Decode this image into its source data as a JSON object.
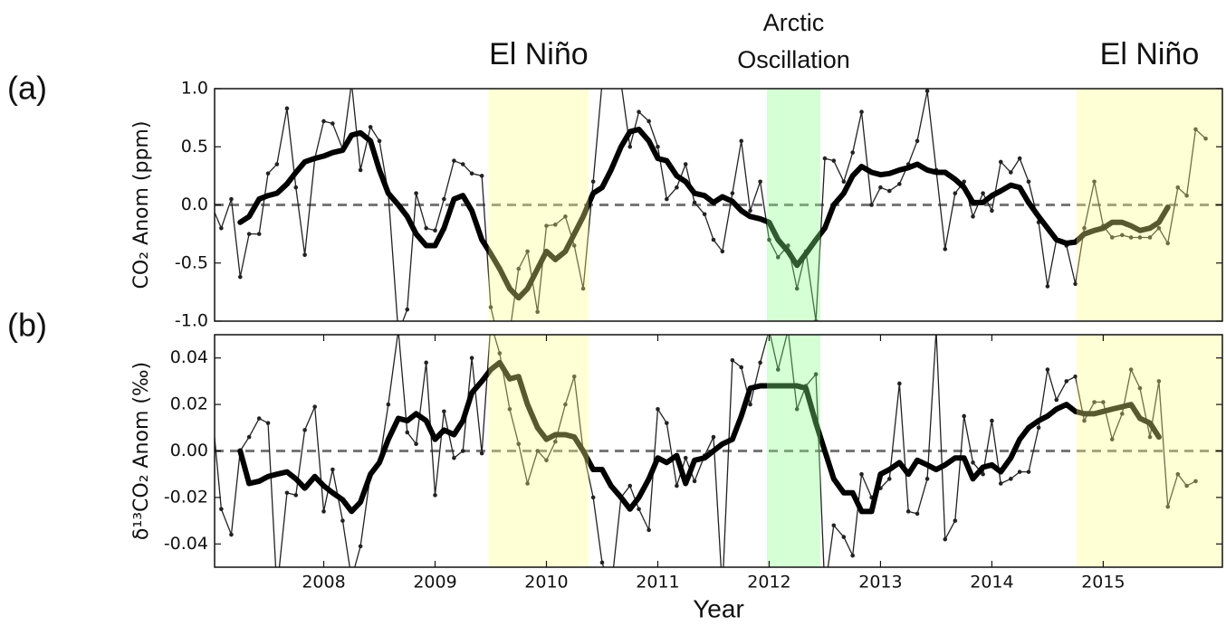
{
  "chart_data": [
    {
      "type": "line",
      "panel_label": "(a)",
      "ylabel": "CO₂ Anom (ppm)",
      "xlim": [
        2007.02,
        2016.07
      ],
      "ylim": [
        -1.0,
        1.0
      ],
      "yticks": [
        {
          "value": 1.0,
          "label": "1.0"
        },
        {
          "value": 0.5,
          "label": "0.5"
        },
        {
          "value": 0.0,
          "label": "0.0"
        },
        {
          "value": -0.5,
          "label": "-0.5"
        },
        {
          "value": -1.0,
          "label": "-1.0"
        }
      ],
      "reference_line": 0,
      "spans": [
        {
          "start": 2009.48,
          "end": 2010.38,
          "color": "#ffff88",
          "label": [
            "El Niño"
          ]
        },
        {
          "start": 2011.98,
          "end": 2012.46,
          "color": "#88ff88",
          "label": [
            "Arctic",
            "Oscillation"
          ]
        },
        {
          "start": 2014.76,
          "end": 2016.07,
          "color": "#ffff88",
          "label": [
            "El Niño"
          ]
        }
      ],
      "series": [
        {
          "color": "#222222",
          "width": 1.3,
          "markers": true,
          "x": [
            2007.0,
            2007.08,
            2007.17,
            2007.25,
            2007.33,
            2007.42,
            2007.5,
            2007.58,
            2007.67,
            2007.75,
            2007.83,
            2007.92,
            2008.0,
            2008.08,
            2008.17,
            2008.25,
            2008.33,
            2008.42,
            2008.5,
            2008.58,
            2008.67,
            2008.75,
            2008.83,
            2008.92,
            2009.0,
            2009.08,
            2009.17,
            2009.25,
            2009.33,
            2009.42,
            2009.5,
            2009.58,
            2009.67,
            2009.75,
            2009.83,
            2009.92,
            2010.0,
            2010.08,
            2010.17,
            2010.25,
            2010.33,
            2010.42,
            2010.5,
            2010.58,
            2010.67,
            2010.75,
            2010.83,
            2010.92,
            2011.0,
            2011.08,
            2011.17,
            2011.25,
            2011.33,
            2011.42,
            2011.5,
            2011.58,
            2011.67,
            2011.75,
            2011.83,
            2011.92,
            2012.0,
            2012.08,
            2012.17,
            2012.25,
            2012.33,
            2012.42,
            2012.5,
            2012.58,
            2012.67,
            2012.75,
            2012.83,
            2012.92,
            2013.0,
            2013.08,
            2013.17,
            2013.25,
            2013.33,
            2013.42,
            2013.5,
            2013.58,
            2013.67,
            2013.75,
            2013.83,
            2013.92,
            2014.0,
            2014.08,
            2014.17,
            2014.25,
            2014.33,
            2014.42,
            2014.5,
            2014.58,
            2014.67,
            2014.75,
            2014.83,
            2014.92,
            2015.0,
            2015.08,
            2015.17,
            2015.25,
            2015.33,
            2015.42,
            2015.5,
            2015.58,
            2015.67,
            2015.75,
            2015.83,
            2015.92
          ],
          "values": [
            -0.02,
            -0.2,
            0.05,
            -0.62,
            -0.25,
            -0.25,
            0.27,
            0.35,
            0.83,
            0.15,
            -0.43,
            0.4,
            0.72,
            0.7,
            0.48,
            1.05,
            0.3,
            0.67,
            0.55,
            0.1,
            -1.1,
            -0.9,
            0.1,
            -0.2,
            -0.22,
            0.05,
            0.38,
            0.35,
            0.27,
            0.25,
            -0.88,
            -1.2,
            -1.1,
            -0.55,
            -0.4,
            -0.92,
            -0.18,
            -0.17,
            -0.1,
            -0.35,
            -0.72,
            0.2,
            1.05,
            1.1,
            1.05,
            0.5,
            0.8,
            0.72,
            0.5,
            0.05,
            0.15,
            0.35,
            0.02,
            -0.08,
            -0.3,
            -0.4,
            0.1,
            0.55,
            -0.05,
            0.2,
            -0.3,
            -0.45,
            -0.35,
            -0.72,
            -0.4,
            -1.0,
            0.4,
            0.38,
            0.2,
            0.45,
            0.8,
            0.0,
            0.15,
            0.12,
            0.18,
            0.35,
            0.55,
            0.98,
            0.3,
            -0.38,
            0.1,
            0.2,
            -0.1,
            0.1,
            -0.05,
            0.37,
            0.28,
            0.4,
            0.2,
            -0.15,
            -0.7,
            -0.3,
            -0.35,
            -0.68,
            -0.2,
            0.2,
            -0.18,
            -0.28,
            -0.26,
            -0.28,
            -0.28,
            -0.28,
            -0.2,
            -0.33,
            0.15,
            0.08,
            0.65,
            0.57
          ]
        },
        {
          "color": "#000000",
          "width": 6,
          "markers": false,
          "x": [
            2007.25,
            2007.33,
            2007.42,
            2007.5,
            2007.58,
            2007.67,
            2007.75,
            2007.83,
            2007.92,
            2008.0,
            2008.08,
            2008.17,
            2008.25,
            2008.33,
            2008.42,
            2008.5,
            2008.58,
            2008.67,
            2008.75,
            2008.83,
            2008.92,
            2009.0,
            2009.08,
            2009.17,
            2009.25,
            2009.33,
            2009.42,
            2009.5,
            2009.58,
            2009.67,
            2009.75,
            2009.83,
            2009.92,
            2010.0,
            2010.08,
            2010.17,
            2010.25,
            2010.33,
            2010.42,
            2010.5,
            2010.58,
            2010.67,
            2010.75,
            2010.83,
            2010.92,
            2011.0,
            2011.08,
            2011.17,
            2011.25,
            2011.33,
            2011.42,
            2011.5,
            2011.58,
            2011.67,
            2011.75,
            2011.83,
            2011.92,
            2012.0,
            2012.08,
            2012.17,
            2012.25,
            2012.33,
            2012.42,
            2012.5,
            2012.58,
            2012.67,
            2012.75,
            2012.83,
            2012.92,
            2013.0,
            2013.08,
            2013.17,
            2013.25,
            2013.33,
            2013.42,
            2013.5,
            2013.58,
            2013.67,
            2013.75,
            2013.83,
            2013.92,
            2014.0,
            2014.08,
            2014.17,
            2014.25,
            2014.33,
            2014.42,
            2014.5,
            2014.58,
            2014.67,
            2014.75,
            2014.83,
            2014.92,
            2015.0,
            2015.08,
            2015.17,
            2015.25,
            2015.33,
            2015.42,
            2015.5,
            2015.58
          ],
          "values": [
            -0.15,
            -0.1,
            0.05,
            0.08,
            0.1,
            0.18,
            0.28,
            0.37,
            0.4,
            0.42,
            0.45,
            0.47,
            0.6,
            0.62,
            0.55,
            0.3,
            0.1,
            0.0,
            -0.1,
            -0.25,
            -0.35,
            -0.35,
            -0.2,
            0.05,
            0.08,
            -0.05,
            -0.3,
            -0.42,
            -0.55,
            -0.72,
            -0.8,
            -0.72,
            -0.55,
            -0.4,
            -0.47,
            -0.4,
            -0.25,
            -0.1,
            0.1,
            0.15,
            0.3,
            0.5,
            0.63,
            0.65,
            0.55,
            0.4,
            0.38,
            0.25,
            0.2,
            0.1,
            0.08,
            0.02,
            0.07,
            0.03,
            -0.05,
            -0.1,
            -0.12,
            -0.15,
            -0.3,
            -0.4,
            -0.52,
            -0.42,
            -0.3,
            -0.2,
            0.0,
            0.1,
            0.25,
            0.33,
            0.28,
            0.26,
            0.27,
            0.3,
            0.32,
            0.35,
            0.3,
            0.28,
            0.28,
            0.22,
            0.15,
            0.02,
            0.02,
            0.08,
            0.12,
            0.17,
            0.15,
            0.02,
            -0.1,
            -0.2,
            -0.3,
            -0.33,
            -0.32,
            -0.25,
            -0.22,
            -0.2,
            -0.15,
            -0.15,
            -0.18,
            -0.22,
            -0.2,
            -0.15,
            -0.02
          ]
        }
      ]
    },
    {
      "type": "line",
      "panel_label": "(b)",
      "ylabel": "δ¹³CO₂ Anom (‰)",
      "xlabel": "Year",
      "xlim": [
        2007.02,
        2016.07
      ],
      "ylim": [
        -0.05,
        0.05
      ],
      "xticks": [
        2008,
        2009,
        2010,
        2011,
        2012,
        2013,
        2014,
        2015
      ],
      "yticks": [
        {
          "value": 0.04,
          "label": "0.04"
        },
        {
          "value": 0.02,
          "label": "0.02"
        },
        {
          "value": 0.0,
          "label": "0.00"
        },
        {
          "value": -0.02,
          "label": "-0.02"
        },
        {
          "value": -0.04,
          "label": "-0.04"
        }
      ],
      "reference_line": 0,
      "spans": [
        {
          "start": 2009.48,
          "end": 2010.38,
          "color": "#ffff88"
        },
        {
          "start": 2011.98,
          "end": 2012.46,
          "color": "#88ff88"
        },
        {
          "start": 2014.76,
          "end": 2016.07,
          "color": "#ffff88"
        }
      ],
      "series": [
        {
          "color": "#222222",
          "width": 1.3,
          "markers": true,
          "x": [
            2007.0,
            2007.08,
            2007.17,
            2007.25,
            2007.33,
            2007.42,
            2007.5,
            2007.58,
            2007.67,
            2007.75,
            2007.83,
            2007.92,
            2008.0,
            2008.08,
            2008.17,
            2008.25,
            2008.33,
            2008.42,
            2008.5,
            2008.58,
            2008.67,
            2008.75,
            2008.83,
            2008.92,
            2009.0,
            2009.08,
            2009.17,
            2009.25,
            2009.33,
            2009.42,
            2009.5,
            2009.58,
            2009.67,
            2009.75,
            2009.83,
            2009.92,
            2010.0,
            2010.08,
            2010.17,
            2010.25,
            2010.33,
            2010.42,
            2010.5,
            2010.58,
            2010.67,
            2010.75,
            2010.83,
            2010.92,
            2011.0,
            2011.08,
            2011.17,
            2011.25,
            2011.33,
            2011.42,
            2011.5,
            2011.58,
            2011.67,
            2011.75,
            2011.83,
            2011.92,
            2012.0,
            2012.08,
            2012.17,
            2012.25,
            2012.33,
            2012.42,
            2012.5,
            2012.58,
            2012.67,
            2012.75,
            2012.83,
            2012.92,
            2013.0,
            2013.08,
            2013.17,
            2013.25,
            2013.33,
            2013.42,
            2013.5,
            2013.58,
            2013.67,
            2013.75,
            2013.83,
            2013.92,
            2014.0,
            2014.08,
            2014.17,
            2014.25,
            2014.33,
            2014.42,
            2014.5,
            2014.58,
            2014.67,
            2014.75,
            2014.83,
            2014.92,
            2015.0,
            2015.08,
            2015.17,
            2015.25,
            2015.33,
            2015.42,
            2015.5,
            2015.58,
            2015.67,
            2015.75,
            2015.83
          ],
          "values": [
            0.016,
            -0.025,
            -0.036,
            0.0,
            0.006,
            0.014,
            0.012,
            -0.06,
            -0.018,
            -0.019,
            0.009,
            0.019,
            -0.026,
            -0.008,
            -0.03,
            -0.055,
            -0.041,
            -0.01,
            -0.005,
            0.02,
            0.052,
            0.008,
            0.003,
            0.038,
            -0.019,
            0.017,
            -0.003,
            0.0,
            0.04,
            -0.001,
            0.055,
            0.042,
            0.018,
            0.003,
            -0.014,
            0.0,
            -0.004,
            0.004,
            0.02,
            0.032,
            0.0,
            -0.02,
            -0.048,
            -0.06,
            -0.02,
            -0.015,
            -0.025,
            -0.034,
            0.018,
            0.012,
            -0.015,
            -0.003,
            -0.013,
            -0.002,
            0.006,
            -0.06,
            0.039,
            0.036,
            0.02,
            0.038,
            0.052,
            0.035,
            0.052,
            0.018,
            0.028,
            0.033,
            -0.06,
            -0.032,
            -0.037,
            -0.045,
            -0.01,
            -0.02,
            -0.016,
            -0.012,
            0.029,
            -0.026,
            -0.027,
            -0.012,
            0.052,
            -0.038,
            -0.03,
            0.015,
            -0.005,
            -0.01,
            0.013,
            -0.014,
            -0.012,
            -0.009,
            -0.009,
            0.01,
            0.035,
            0.022,
            0.03,
            0.032,
            0.013,
            0.021,
            0.021,
            0.005,
            0.016,
            0.035,
            0.027,
            0.006,
            0.03,
            -0.024,
            -0.01,
            -0.015,
            -0.013
          ]
        },
        {
          "color": "#000000",
          "width": 6,
          "markers": false,
          "x": [
            2007.25,
            2007.33,
            2007.42,
            2007.5,
            2007.58,
            2007.67,
            2007.75,
            2007.83,
            2007.92,
            2008.0,
            2008.08,
            2008.17,
            2008.25,
            2008.33,
            2008.42,
            2008.5,
            2008.58,
            2008.67,
            2008.75,
            2008.83,
            2008.92,
            2009.0,
            2009.08,
            2009.17,
            2009.25,
            2009.33,
            2009.42,
            2009.5,
            2009.58,
            2009.67,
            2009.75,
            2009.83,
            2009.92,
            2010.0,
            2010.08,
            2010.17,
            2010.25,
            2010.33,
            2010.42,
            2010.5,
            2010.58,
            2010.67,
            2010.75,
            2010.83,
            2010.92,
            2011.0,
            2011.08,
            2011.17,
            2011.25,
            2011.33,
            2011.42,
            2011.5,
            2011.58,
            2011.67,
            2011.75,
            2011.83,
            2011.92,
            2012.0,
            2012.08,
            2012.17,
            2012.25,
            2012.33,
            2012.42,
            2012.5,
            2012.58,
            2012.67,
            2012.75,
            2012.83,
            2012.92,
            2013.0,
            2013.08,
            2013.17,
            2013.25,
            2013.33,
            2013.42,
            2013.5,
            2013.58,
            2013.67,
            2013.75,
            2013.83,
            2013.92,
            2014.0,
            2014.08,
            2014.17,
            2014.25,
            2014.33,
            2014.42,
            2014.5,
            2014.58,
            2014.67,
            2014.75,
            2014.83,
            2014.92,
            2015.0,
            2015.08,
            2015.17,
            2015.25,
            2015.33,
            2015.42,
            2015.5
          ],
          "values": [
            0.0,
            -0.014,
            -0.013,
            -0.011,
            -0.01,
            -0.009,
            -0.012,
            -0.016,
            -0.011,
            -0.015,
            -0.018,
            -0.021,
            -0.026,
            -0.022,
            -0.01,
            -0.005,
            0.005,
            0.014,
            0.013,
            0.016,
            0.013,
            0.005,
            0.009,
            0.007,
            0.013,
            0.025,
            0.03,
            0.035,
            0.038,
            0.031,
            0.032,
            0.02,
            0.01,
            0.005,
            0.007,
            0.007,
            0.006,
            0.0,
            -0.008,
            -0.008,
            -0.015,
            -0.02,
            -0.025,
            -0.02,
            -0.012,
            -0.003,
            -0.005,
            -0.002,
            -0.014,
            -0.004,
            -0.003,
            0.0,
            0.003,
            0.005,
            0.015,
            0.027,
            0.028,
            0.028,
            0.028,
            0.028,
            0.028,
            0.027,
            0.012,
            0.0,
            -0.012,
            -0.018,
            -0.018,
            -0.026,
            -0.026,
            -0.01,
            -0.008,
            -0.005,
            -0.01,
            -0.004,
            -0.006,
            -0.008,
            -0.006,
            -0.003,
            -0.003,
            -0.012,
            -0.007,
            -0.006,
            -0.009,
            -0.003,
            0.005,
            0.01,
            0.013,
            0.015,
            0.018,
            0.02,
            0.017,
            0.016,
            0.016,
            0.017,
            0.018,
            0.019,
            0.02,
            0.014,
            0.012,
            0.006
          ]
        }
      ]
    }
  ]
}
